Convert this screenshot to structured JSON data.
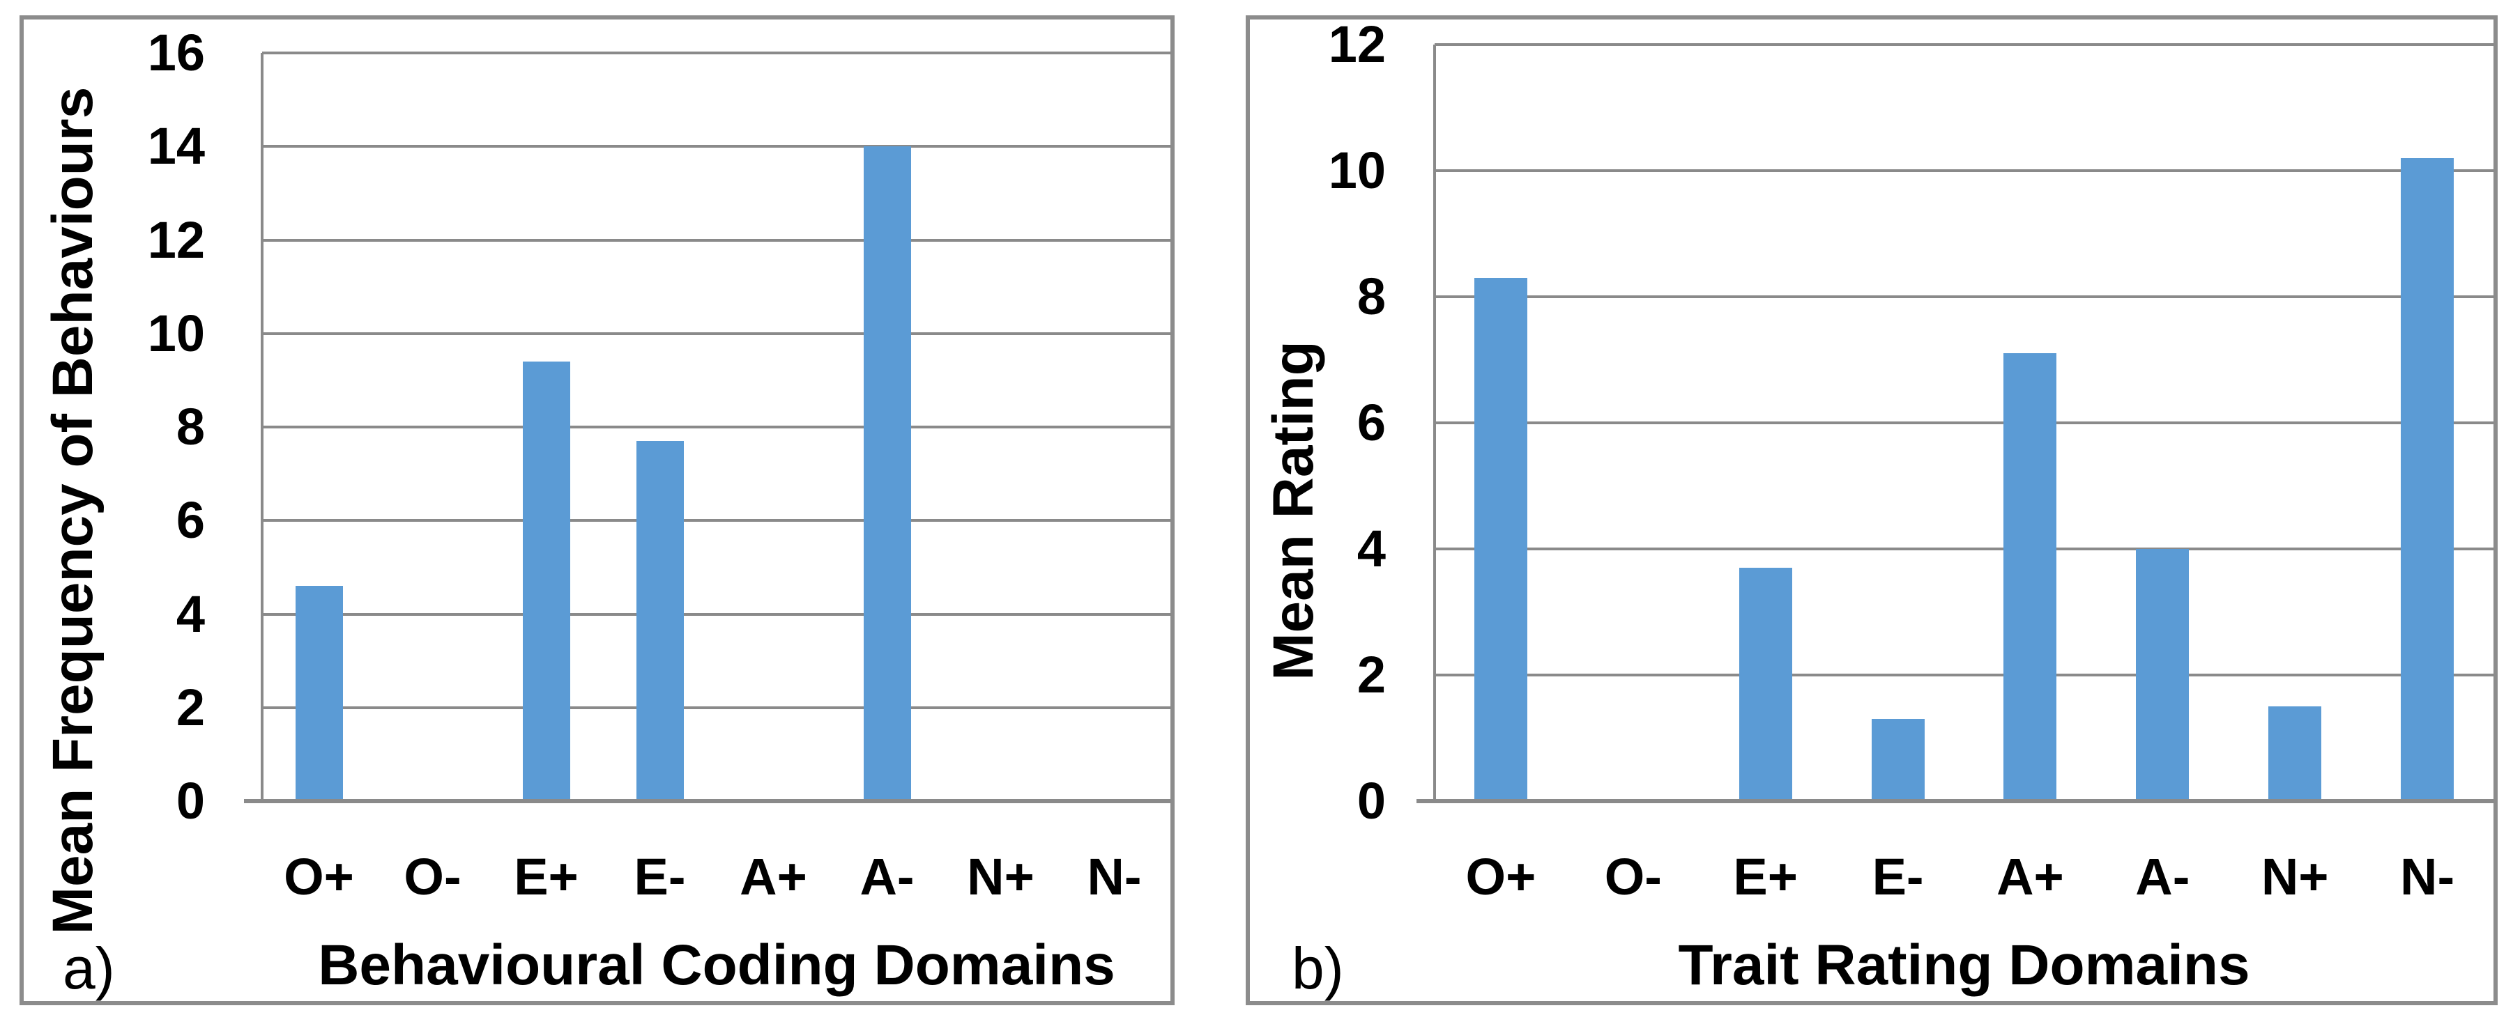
{
  "page": {
    "background": "#ffffff"
  },
  "styles": {
    "bar_color": "#5b9bd5",
    "gridline_color": "#8a8a8a",
    "axis_color": "#8a8a8a",
    "panel_border_color": "#8c8c8c",
    "text_color": "#000000"
  },
  "chart_data": [
    {
      "type": "bar",
      "panel_label": "a)",
      "xlabel": "Behavioural Coding Domains",
      "ylabel": "Mean Frequency of Behaviours",
      "categories": [
        "O+",
        "O-",
        "E+",
        "E-",
        "A+",
        "A-",
        "N+",
        "N-"
      ],
      "values": [
        4.6,
        0,
        9.4,
        7.7,
        0,
        14,
        0,
        0
      ],
      "ylim": [
        0,
        16
      ],
      "ytick_step": 2,
      "grid": true,
      "legend": "none"
    },
    {
      "type": "bar",
      "panel_label": "b)",
      "xlabel": "Trait Rating Domains",
      "ylabel": "Mean Rating",
      "categories": [
        "O+",
        "O-",
        "E+",
        "E-",
        "A+",
        "A-",
        "N+",
        "N-"
      ],
      "values": [
        8.3,
        0,
        3.7,
        1.3,
        7.1,
        4.0,
        1.5,
        10.2
      ],
      "ylim": [
        0,
        12
      ],
      "ytick_step": 2,
      "grid": true,
      "legend": "none"
    }
  ]
}
